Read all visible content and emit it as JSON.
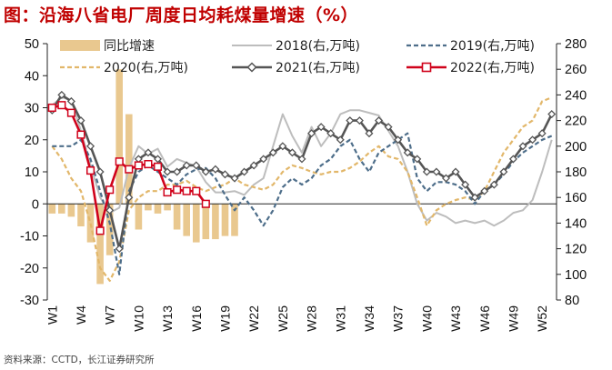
{
  "title": "图：沿海八省电厂周度日均耗煤量增速（%）",
  "source": "资料来源：CCTD，长江证券研究所",
  "chart_data": {
    "type": "combo",
    "left_axis": {
      "ylim": [
        -30,
        50
      ],
      "ticks": [
        "-30",
        "-20",
        "-10",
        "0",
        "10",
        "20",
        "30",
        "40",
        "50"
      ]
    },
    "right_axis": {
      "ylim": [
        80,
        280
      ],
      "ticks": [
        "80",
        "100",
        "120",
        "140",
        "160",
        "180",
        "200",
        "220",
        "240",
        "260",
        "280"
      ]
    },
    "x_ticks": [
      "W1",
      "W4",
      "W7",
      "W10",
      "W13",
      "W16",
      "W19",
      "W22",
      "W25",
      "W28",
      "W31",
      "W34",
      "W37",
      "W40",
      "W43",
      "W46",
      "W49",
      "W52"
    ],
    "x_count": 53,
    "grid": false,
    "legend": [
      {
        "label": "同比增速",
        "color": "#e9c88f",
        "style": "bar"
      },
      {
        "label": "2018(右,万吨)",
        "color": "#bdbdbd",
        "style": "line"
      },
      {
        "label": "2019(右,万吨)",
        "color": "#4e6e8a",
        "style": "dash"
      },
      {
        "label": "2020(右,万吨)",
        "color": "#e2b76a",
        "style": "dash"
      },
      {
        "label": "2021(右,万吨)",
        "color": "#555555",
        "style": "diamond"
      },
      {
        "label": "2022(右,万吨)",
        "color": "#d0021b",
        "style": "square"
      }
    ],
    "bars": {
      "name": "同比增速",
      "values": [
        -3,
        -3,
        -4,
        -7,
        -12,
        -25,
        -16,
        42,
        28,
        -8,
        -2,
        -3,
        -2,
        -8,
        -10,
        -12,
        -11,
        -11,
        -10,
        -10
      ]
    },
    "series": [
      {
        "name": "2018(右,万吨)",
        "color": "#bdbdbd",
        "values": [
          232,
          238,
          236,
          212,
          185,
          160,
          148,
          152,
          183,
          200,
          194,
          198,
          184,
          190,
          187,
          184,
          172,
          164,
          164,
          165,
          162,
          170,
          175,
          200,
          225,
          208,
          195,
          215,
          200,
          210,
          225,
          228,
          228,
          226,
          224,
          212,
          200,
          180,
          155,
          142,
          148,
          145,
          140,
          142,
          140,
          142,
          138,
          142,
          148,
          150,
          158,
          180,
          205
        ]
      },
      {
        "name": "2019(右,万吨)",
        "color": "#4e6e8a",
        "values": [
          200,
          200,
          200,
          205,
          190,
          165,
          140,
          100,
          165,
          180,
          185,
          180,
          175,
          170,
          178,
          182,
          183,
          175,
          162,
          150,
          160,
          150,
          138,
          150,
          168,
          175,
          170,
          175,
          185,
          190,
          200,
          205,
          190,
          180,
          195,
          200,
          205,
          210,
          175,
          165,
          172,
          172,
          170,
          165,
          155,
          165,
          170,
          178,
          188,
          195,
          200,
          205,
          208
        ]
      },
      {
        "name": "2020(右,万吨)",
        "color": "#e2b76a",
        "values": [
          200,
          190,
          175,
          165,
          140,
          105,
          95,
          110,
          150,
          160,
          165,
          165,
          170,
          170,
          173,
          168,
          165,
          168,
          170,
          175,
          170,
          168,
          166,
          170,
          180,
          185,
          183,
          180,
          178,
          180,
          180,
          183,
          188,
          195,
          200,
          192,
          190,
          180,
          160,
          138,
          150,
          155,
          158,
          160,
          158,
          165,
          180,
          195,
          205,
          215,
          220,
          235,
          238
        ]
      },
      {
        "name": "2021(右,万吨)",
        "color": "#555555",
        "values": [
          228,
          240,
          235,
          220,
          200,
          180,
          150,
          120,
          160,
          190,
          195,
          190,
          180,
          180,
          185,
          185,
          180,
          182,
          178,
          175,
          180,
          185,
          190,
          195,
          200,
          195,
          190,
          210,
          215,
          210,
          205,
          220,
          220,
          210,
          220,
          215,
          205,
          195,
          190,
          180,
          180,
          175,
          180,
          170,
          160,
          165,
          170,
          180,
          190,
          200,
          205,
          210,
          225
        ]
      },
      {
        "name": "2022(右,万吨)",
        "color": "#d0021b",
        "values": [
          230,
          232,
          226,
          209,
          181,
          134,
          166,
          188,
          182,
          185,
          186,
          184,
          164,
          166,
          165,
          165,
          155
        ]
      }
    ]
  }
}
